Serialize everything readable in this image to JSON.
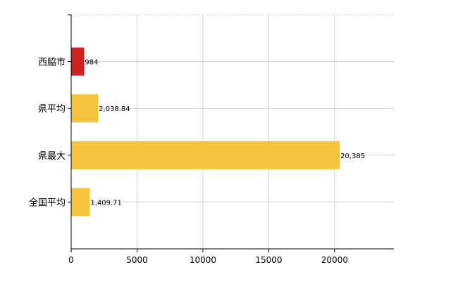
{
  "chart_data": {
    "type": "bar",
    "orientation": "horizontal",
    "categories": [
      "西脇市",
      "県平均",
      "県最大",
      "全国平均"
    ],
    "values": [
      984,
      2038.84,
      20385,
      1409.71
    ],
    "value_labels": [
      "984",
      "2,038.84",
      "20,385",
      "1,409.71"
    ],
    "colors": [
      "#cc2222",
      "#f5c43c",
      "#f5c43c",
      "#f5c43c"
    ],
    "x_ticks": [
      0,
      5000,
      10000,
      15000,
      20000
    ],
    "x_tick_labels": [
      "0",
      "5000",
      "10000",
      "15000",
      "20000"
    ],
    "xlim": [
      0,
      24500
    ],
    "grid": true,
    "title": "",
    "xlabel": "",
    "ylabel": ""
  }
}
